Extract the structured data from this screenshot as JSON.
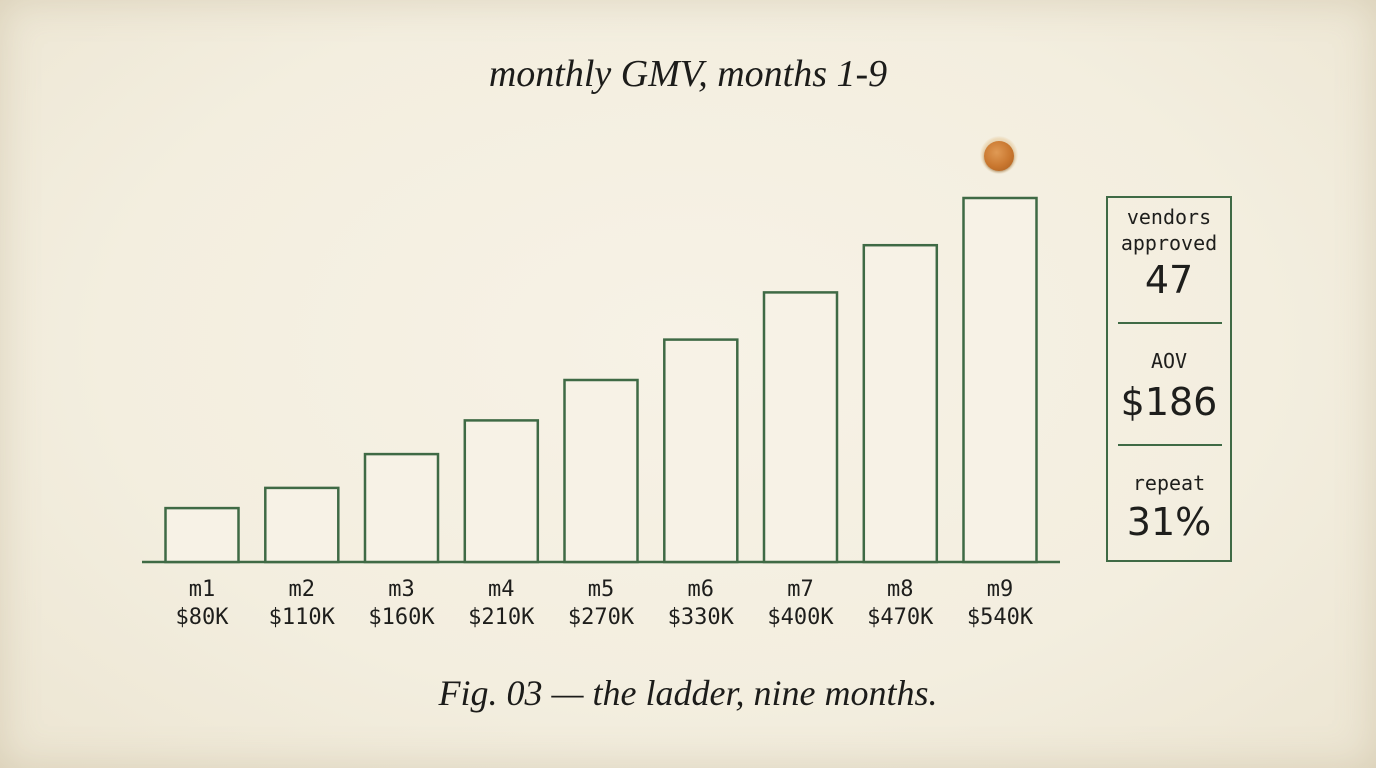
{
  "chart_data": {
    "type": "bar",
    "title": "monthly GMV, months 1-9",
    "categories": [
      "m1",
      "m2",
      "m3",
      "m4",
      "m5",
      "m6",
      "m7",
      "m8",
      "m9"
    ],
    "values": [
      80,
      110,
      160,
      210,
      270,
      330,
      400,
      470,
      540
    ],
    "value_labels": [
      "$80K",
      "$110K",
      "$160K",
      "$210K",
      "$270K",
      "$330K",
      "$400K",
      "$470K",
      "$540K"
    ],
    "value_unit": "$K",
    "ylim": [
      0,
      540
    ],
    "grid": false,
    "colors": {
      "bar_stroke": "#3f6a45",
      "bar_fill": "#f7f2e6",
      "text": "#1e1e1c"
    },
    "highlight_category": "m9"
  },
  "caption": "Fig. 03 — the ladder, nine months.",
  "stats": [
    {
      "label": "vendors\napproved",
      "value": "47"
    },
    {
      "label": "AOV",
      "value": "$186"
    },
    {
      "label": "repeat",
      "value": "31%"
    }
  ],
  "icons": {
    "pin": "pushpin-icon"
  }
}
